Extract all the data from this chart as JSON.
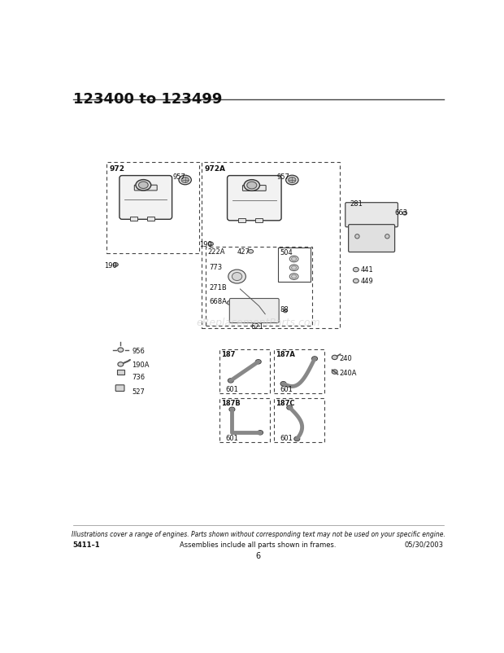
{
  "title": "123400 to 123499",
  "footer_italic": "Illustrations cover a range of engines. Parts shown without corresponding text may not be used on your specific engine.",
  "footer_left": "5411–1",
  "footer_center": "Assemblies include all parts shown in frames.",
  "footer_right": "05/30/2003",
  "page_number": "6",
  "bg_color": "#ffffff",
  "line_color": "#333333",
  "text_color": "#111111",
  "watermark": "eReplacementParts.com",
  "watermark_color": "#cccccc",
  "dash_pattern": [
    4,
    3
  ],
  "title_fontsize": 13,
  "label_fontsize": 6.5,
  "small_label_fontsize": 6,
  "footer_fontsize": 6,
  "footer_italic_fontsize": 5.5
}
